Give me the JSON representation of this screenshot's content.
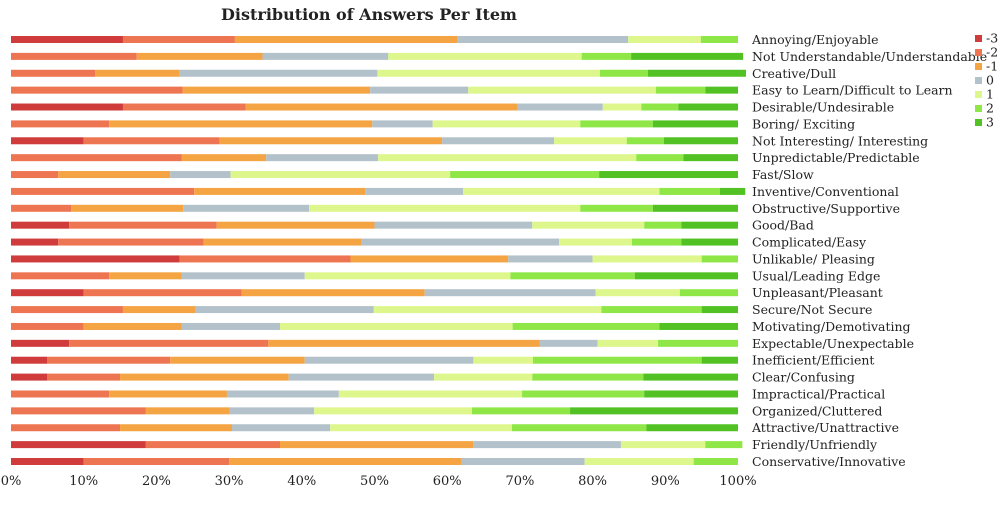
{
  "chart_data": {
    "type": "bar",
    "orientation": "horizontal",
    "stacked": true,
    "percent": true,
    "title": "Distribution of Answers Per Item",
    "xlabel": "",
    "ylabel": "",
    "xlim": [
      0,
      100
    ],
    "x_ticks": [
      "0%",
      "10%",
      "20%",
      "30%",
      "40%",
      "50%",
      "60%",
      "70%",
      "80%",
      "90%",
      "100%"
    ],
    "grid": false,
    "legend_position": "right",
    "categories": [
      "Annoying/Enjoyable",
      "Not Understandable/Understandable",
      "Creative/Dull",
      "Easy to Learn/Difficult to Learn",
      "Desirable/Undesirable",
      "Boring/ Exciting",
      "Not Interesting/ Interesting",
      "Unpredictable/Predictable",
      "Fast/Slow",
      "Inventive/Conventional",
      "Obstructive/Supportive",
      "Good/Bad",
      "Complicated/Easy",
      "Unlikable/ Pleasing",
      "Usual/Leading Edge",
      "Unpleasant/Pleasant",
      "Secure/Not Secure",
      "Motivating/Demotivating",
      "Expectable/Unexpectable",
      "Inefficient/Efficient",
      "Clear/Confusing",
      "Impractical/Practical",
      "Organized/Cluttered",
      "Attractive/Unattractive",
      "Friendly/Unfriendly",
      "Conservative/Innovative"
    ],
    "series": [
      {
        "name": "-3",
        "color": "#d03b3b",
        "values": [
          15.4,
          0,
          0,
          0,
          15.4,
          0,
          10,
          0,
          0,
          0,
          0,
          8,
          6.5,
          23.2,
          0,
          10,
          0,
          0,
          8,
          5,
          5,
          0,
          0,
          0,
          18.5,
          10
        ]
      },
      {
        "name": "-2",
        "color": "#ee7551",
        "values": [
          15.4,
          17.3,
          11.6,
          23.6,
          16.9,
          13.5,
          18.7,
          23.5,
          6.5,
          25.2,
          8.3,
          20.3,
          20,
          23.5,
          13.5,
          21.7,
          15.4,
          10,
          27.4,
          16.9,
          10,
          13.5,
          18.5,
          15,
          18.5,
          20
        ]
      },
      {
        "name": "-1",
        "color": "#f4a443",
        "values": [
          30.6,
          17.3,
          11.6,
          25.8,
          37.3,
          36.2,
          30.6,
          11.6,
          15.4,
          23.5,
          15.4,
          21.7,
          21.7,
          21.7,
          10,
          25.2,
          10,
          13.5,
          37.3,
          18.5,
          23.2,
          16.2,
          11.6,
          15.4,
          26.6,
          32
        ]
      },
      {
        "name": "0",
        "color": "#b3c2ca",
        "values": [
          23.5,
          17.3,
          27.2,
          13.5,
          11.8,
          8.3,
          15.4,
          15.4,
          8.3,
          13.5,
          17.3,
          21.7,
          27.2,
          11.6,
          16.9,
          23.5,
          24.5,
          13.5,
          8,
          23.2,
          20,
          15.4,
          11.6,
          13.5,
          20.3,
          16.9
        ]
      },
      {
        "name": "1",
        "color": "#ddf78d",
        "values": [
          10,
          26.6,
          30.6,
          25.8,
          5.3,
          20.3,
          10,
          35.5,
          30.2,
          27,
          37.3,
          15.4,
          10,
          15,
          28.3,
          11.6,
          31.3,
          32,
          8.3,
          8.2,
          13.5,
          25.2,
          21.7,
          25,
          11.6,
          15
        ]
      },
      {
        "name": "2",
        "color": "#8fe747",
        "values": [
          5.1,
          6.8,
          6.6,
          6.8,
          5.1,
          10,
          5.1,
          6.5,
          20.5,
          8.3,
          10,
          5.1,
          6.8,
          5,
          17.1,
          8,
          13.8,
          20.2,
          11,
          23.2,
          15.3,
          16.8,
          13.5,
          18.5,
          5.1,
          6.1
        ]
      },
      {
        "name": "3",
        "color": "#52c123",
        "values": [
          0,
          15.4,
          13.5,
          4.5,
          8.2,
          11.7,
          10.2,
          7.5,
          19.1,
          3.5,
          11.7,
          7.8,
          7.8,
          0,
          14.2,
          0,
          5,
          10.8,
          0,
          5,
          13,
          12.9,
          23.1,
          12.6,
          0,
          0
        ]
      }
    ]
  }
}
